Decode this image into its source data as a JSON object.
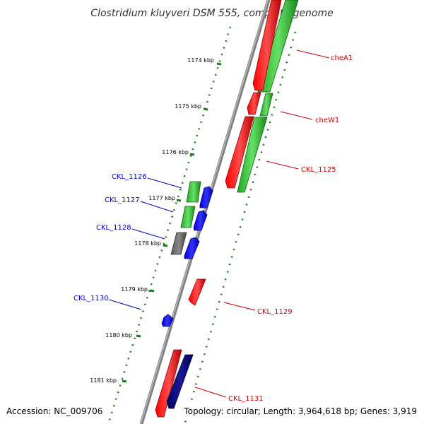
{
  "map": {
    "title": "Clostridium kluyveri DSM 555, complete genome",
    "accession": "Accession: NC_009706",
    "topology": "Topology: circular; Length: 3,964,618 bp; Genes: 3,919"
  },
  "colors": {
    "backbone": "#808080",
    "forward_cds": "#ff0000",
    "reverse_cds": "#33cc33",
    "reverse_rna": "#0000ff",
    "forward_rna": "#000080",
    "other": "#666666",
    "tick": "#1a7a1a",
    "label_forward": "#cc0000",
    "label_reverse": "#0000cc"
  },
  "ticks": [
    "1174 kbp",
    "1175 kbp",
    "1176 kbp",
    "1177 kbp",
    "1178 kbp",
    "1179 kbp",
    "1180 kbp",
    "1181 kbp"
  ],
  "genes": [
    {
      "label": "cheA1",
      "side": "right",
      "color_key": "label_forward"
    },
    {
      "label": "cheW1",
      "side": "right",
      "color_key": "label_forward"
    },
    {
      "label": "CKL_1125",
      "side": "right",
      "color_key": "label_forward"
    },
    {
      "label": "CKL_1129",
      "side": "right",
      "color_key": "label_forward"
    },
    {
      "label": "CKL_1131",
      "side": "right",
      "color_key": "label_forward"
    },
    {
      "label": "CKL_1126",
      "side": "left",
      "color_key": "label_reverse"
    },
    {
      "label": "CKL_1127",
      "side": "left",
      "color_key": "label_reverse"
    },
    {
      "label": "CKL_1128",
      "side": "left",
      "color_key": "label_reverse"
    },
    {
      "label": "CKL_1130",
      "side": "left",
      "color_key": "label_reverse"
    }
  ]
}
